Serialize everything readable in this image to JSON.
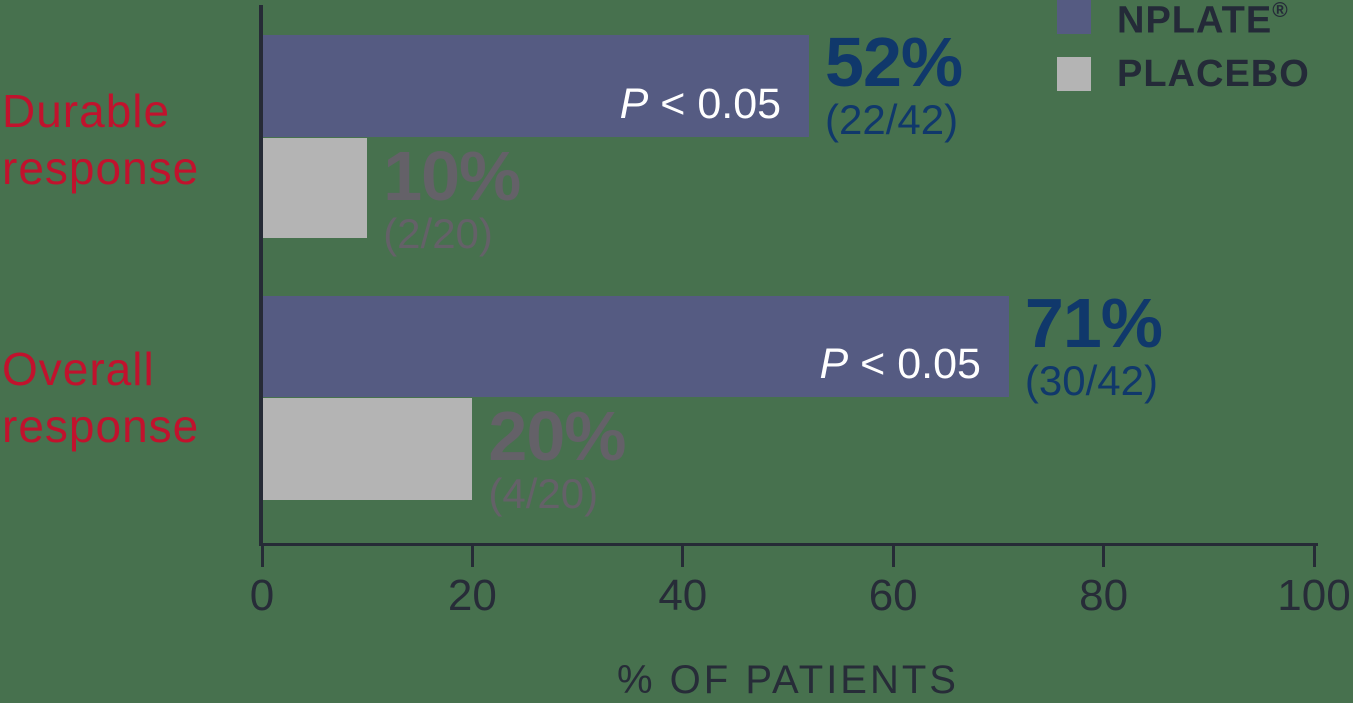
{
  "colors": {
    "background": "#47714E",
    "nplate_bar": "#555B82",
    "placebo_bar": "#B4B4B4",
    "nplate_value_text": "#10386B",
    "placebo_value_text": "#646168",
    "category_label_red": "#C1122D",
    "axis": "#262B36",
    "p_value_text": "#FFFFFF",
    "legend_text": "#242A38"
  },
  "legend": {
    "items": [
      {
        "label": "NPLATE",
        "mark": "®",
        "color": "#555B82"
      },
      {
        "label": "PLACEBO",
        "mark": "",
        "color": "#B4B4B4"
      }
    ]
  },
  "chart_data": {
    "type": "bar",
    "orientation": "horizontal",
    "title": "",
    "xlabel": "% OF PATIENTS",
    "ylabel": "",
    "xlim": [
      0,
      100
    ],
    "xticks": [
      0,
      20,
      40,
      60,
      80,
      100
    ],
    "grid": false,
    "legend_position": "top-right",
    "categories": [
      "Durable response",
      "Overall response"
    ],
    "series_names": [
      "NPLATE®",
      "PLACEBO"
    ],
    "groups": [
      {
        "category_lines": [
          "Durable",
          "response"
        ],
        "bars": [
          {
            "series": "NPLATE®",
            "value": 52,
            "value_label": "52%",
            "fraction": "(22/42)",
            "p_value": "P < 0.05"
          },
          {
            "series": "PLACEBO",
            "value": 10,
            "value_label": "10%",
            "fraction": "(2/20)",
            "p_value": ""
          }
        ]
      },
      {
        "category_lines": [
          "Overall",
          "response"
        ],
        "bars": [
          {
            "series": "NPLATE®",
            "value": 71,
            "value_label": "71%",
            "fraction": "(30/42)",
            "p_value": "P < 0.05"
          },
          {
            "series": "PLACEBO",
            "value": 20,
            "value_label": "20%",
            "fraction": "(4/20)",
            "p_value": ""
          }
        ]
      }
    ]
  }
}
